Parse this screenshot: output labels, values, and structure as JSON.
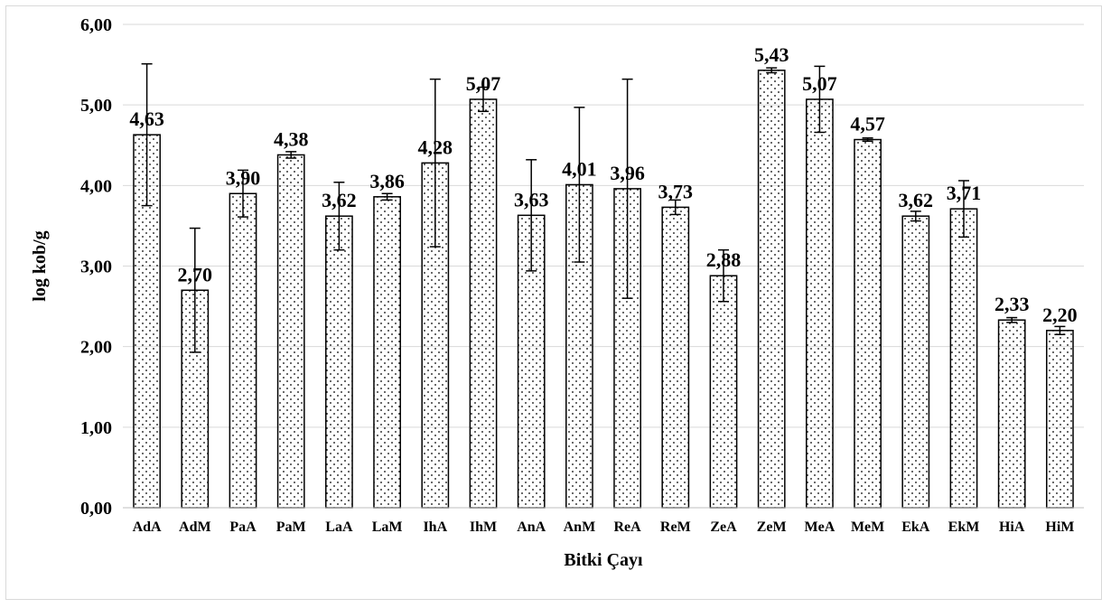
{
  "chart_data": {
    "type": "bar",
    "xlabel": "Bitki Çayı",
    "ylabel": "log kob/g",
    "ylim": [
      0,
      6
    ],
    "yticks": [
      "0,00",
      "1,00",
      "2,00",
      "3,00",
      "4,00",
      "5,00",
      "6,00"
    ],
    "grid": true,
    "legend": "none",
    "bar_fill": "dotted",
    "categories": [
      "AdA",
      "AdM",
      "PaA",
      "PaM",
      "LaA",
      "LaM",
      "IhA",
      "IhM",
      "AnA",
      "AnM",
      "ReA",
      "ReM",
      "ZeA",
      "ZeM",
      "MeA",
      "MeM",
      "EkA",
      "EkM",
      "HiA",
      "HiM"
    ],
    "values": [
      4.63,
      2.7,
      3.9,
      4.38,
      3.62,
      3.86,
      4.28,
      5.07,
      3.63,
      4.01,
      3.96,
      3.73,
      2.88,
      5.43,
      5.07,
      4.57,
      3.62,
      3.71,
      2.33,
      2.2
    ],
    "data_labels": [
      "4,63",
      "2,70",
      "3,90",
      "4,38",
      "3,62",
      "3,86",
      "4,28",
      "5,07",
      "3,63",
      "4,01",
      "3,96",
      "3,73",
      "2,88",
      "5,43",
      "5,07",
      "4,57",
      "3,62",
      "3,71",
      "2,33",
      "2,20"
    ],
    "error_bars": [
      0.88,
      0.77,
      0.29,
      0.04,
      0.42,
      0.04,
      1.04,
      0.15,
      0.69,
      0.96,
      1.36,
      0.09,
      0.32,
      0.03,
      0.41,
      0.02,
      0.06,
      0.35,
      0.03,
      0.05
    ],
    "colors": {
      "bar_fill": "#ffffff",
      "bar_stroke": "#000000",
      "dots": "#000000",
      "grid": "#d9d9d9",
      "text": "#000000"
    }
  }
}
